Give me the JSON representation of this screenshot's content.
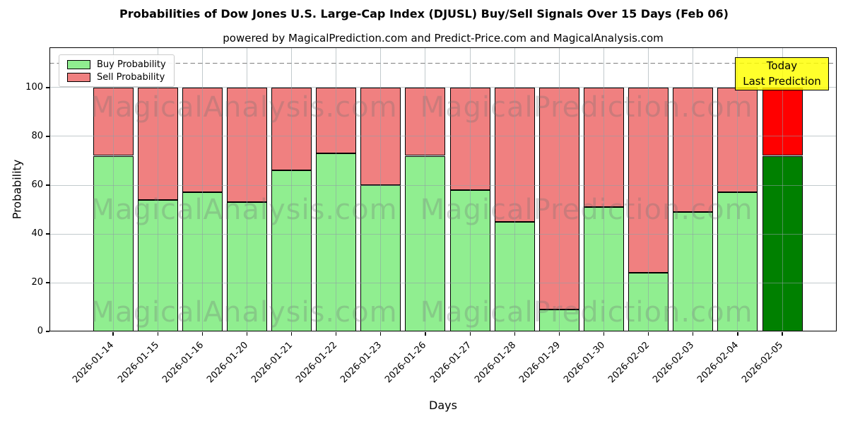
{
  "figure": {
    "title": "Probabilities of Dow Jones U.S. Large-Cap Index (DJUSL) Buy/Sell Signals Over 15 Days (Feb 06)",
    "subtitle": "powered by MagicalPrediction.com and Predict-Price.com and MagicalAnalysis.com"
  },
  "watermarks": {
    "left": "MagicalAnalysis.com",
    "right": "MagicalPrediction.com"
  },
  "annotation": {
    "line1": "Today",
    "line2": "Last Prediction",
    "bg_color": "#ffff00"
  },
  "chart_data": {
    "type": "bar",
    "stacked": true,
    "title": "Probabilities of Dow Jones U.S. Large-Cap Index (DJUSL) Buy/Sell Signals Over 15 Days (Feb 06)",
    "subtitle": "powered by MagicalPrediction.com and Predict-Price.com and MagicalAnalysis.com",
    "xlabel": "Days",
    "ylabel": "Probability",
    "categories": [
      "2026-01-14",
      "2026-01-15",
      "2026-01-16",
      "2026-01-20",
      "2026-01-21",
      "2026-01-22",
      "2026-01-23",
      "2026-01-26",
      "2026-01-27",
      "2026-01-28",
      "2026-01-29",
      "2026-01-30",
      "2026-02-02",
      "2026-02-03",
      "2026-02-04",
      "2026-02-05"
    ],
    "series": [
      {
        "name": "Buy Probability",
        "color": "#90ee90",
        "values": [
          72,
          54,
          57,
          53,
          66,
          73,
          60,
          72,
          58,
          45,
          9,
          51,
          24,
          49,
          57,
          72
        ]
      },
      {
        "name": "Sell Probability",
        "color": "#f08080",
        "values": [
          28,
          46,
          43,
          47,
          34,
          27,
          40,
          28,
          42,
          55,
          91,
          49,
          76,
          51,
          43,
          28
        ]
      }
    ],
    "today_index": 15,
    "today_colors": {
      "buy": "#008000",
      "sell": "#ff0000"
    },
    "bar_edge_color": "#000000",
    "yticks": [
      0,
      20,
      40,
      60,
      80,
      100
    ],
    "ylim": [
      0,
      116.5
    ],
    "dashed_hline": 110,
    "grid": true,
    "legend_position": "upper left"
  }
}
